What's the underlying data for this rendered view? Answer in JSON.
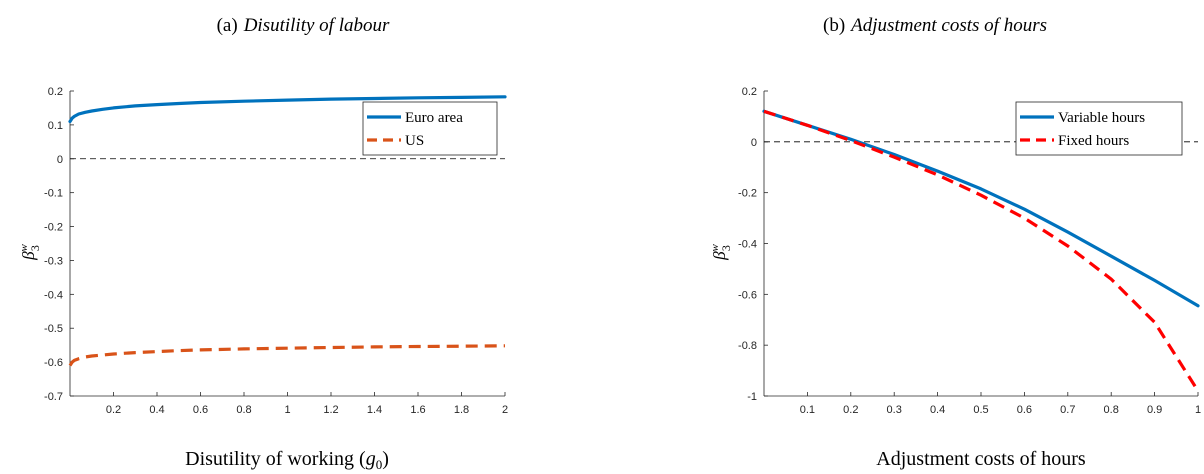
{
  "chart_data": [
    {
      "type": "line",
      "panel_label": "(a)",
      "title": "Disutility of labour",
      "xlabel": "Disutility of working (",
      "xlabel_symbol": "g",
      "xlabel_sub": "0",
      "xlabel_close": ")",
      "ylabel": "β",
      "ylabel_sup": "w",
      "ylabel_sub": "3",
      "xlim": [
        0,
        2
      ],
      "ylim": [
        -0.7,
        0.2
      ],
      "xticks": [
        "0.2",
        "0.4",
        "0.6",
        "0.8",
        "1",
        "1.2",
        "1.4",
        "1.6",
        "1.8",
        "2"
      ],
      "xtick_values": [
        0.2,
        0.4,
        0.6,
        0.8,
        1,
        1.2,
        1.4,
        1.6,
        1.8,
        2
      ],
      "yticks": [
        "0.2",
        "0.1",
        "0",
        "-0.1",
        "-0.2",
        "-0.3",
        "-0.4",
        "-0.5",
        "-0.6",
        "-0.7"
      ],
      "ytick_values": [
        0.2,
        0.1,
        0,
        -0.1,
        -0.2,
        -0.3,
        -0.4,
        -0.5,
        -0.6,
        -0.7
      ],
      "zero_line": true,
      "grid": false,
      "legend_position": "top-right",
      "series": [
        {
          "name": "Euro area",
          "color": "#0072BD",
          "style": "solid",
          "x": [
            0.0,
            0.01,
            0.02,
            0.04,
            0.07,
            0.1,
            0.15,
            0.2,
            0.3,
            0.4,
            0.5,
            0.6,
            0.8,
            1.0,
            1.2,
            1.4,
            1.6,
            1.8,
            2.0
          ],
          "y": [
            0.11,
            0.12,
            0.125,
            0.132,
            0.137,
            0.141,
            0.146,
            0.15,
            0.156,
            0.16,
            0.163,
            0.166,
            0.17,
            0.173,
            0.176,
            0.178,
            0.18,
            0.181,
            0.183
          ]
        },
        {
          "name": "US",
          "color": "#D95319",
          "style": "dashed",
          "x": [
            0.0,
            0.01,
            0.02,
            0.04,
            0.07,
            0.1,
            0.15,
            0.2,
            0.3,
            0.4,
            0.5,
            0.6,
            0.8,
            1.0,
            1.2,
            1.4,
            1.6,
            1.8,
            2.0
          ],
          "y": [
            -0.61,
            -0.6,
            -0.595,
            -0.59,
            -0.585,
            -0.582,
            -0.579,
            -0.576,
            -0.572,
            -0.569,
            -0.566,
            -0.564,
            -0.561,
            -0.559,
            -0.557,
            -0.555,
            -0.554,
            -0.553,
            -0.552
          ]
        }
      ]
    },
    {
      "type": "line",
      "panel_label": "(b)",
      "title": "Adjustment costs of hours",
      "xlabel": "Adjustment costs of hours",
      "ylabel": "β",
      "ylabel_sup": "w",
      "ylabel_sub": "3",
      "xlim": [
        0,
        1
      ],
      "ylim": [
        -1,
        0.2
      ],
      "xticks": [
        "0.1",
        "0.2",
        "0.3",
        "0.4",
        "0.5",
        "0.6",
        "0.7",
        "0.8",
        "0.9",
        "1"
      ],
      "xtick_values": [
        0.1,
        0.2,
        0.3,
        0.4,
        0.5,
        0.6,
        0.7,
        0.8,
        0.9,
        1
      ],
      "yticks": [
        "0.2",
        "0",
        "-0.2",
        "-0.4",
        "-0.6",
        "-0.8",
        "-1"
      ],
      "ytick_values": [
        0.2,
        0,
        -0.2,
        -0.4,
        -0.6,
        -0.8,
        -1
      ],
      "zero_line": true,
      "grid": false,
      "legend_position": "top-right",
      "series": [
        {
          "name": "Variable hours",
          "color": "#0072BD",
          "style": "solid",
          "x": [
            0.0,
            0.1,
            0.2,
            0.3,
            0.4,
            0.5,
            0.6,
            0.7,
            0.8,
            0.9,
            1.0
          ],
          "y": [
            0.12,
            0.065,
            0.01,
            -0.05,
            -0.115,
            -0.185,
            -0.265,
            -0.355,
            -0.45,
            -0.545,
            -0.645
          ]
        },
        {
          "name": "Fixed hours",
          "color": "#FF0000",
          "style": "dashed",
          "x": [
            0.0,
            0.1,
            0.2,
            0.3,
            0.4,
            0.5,
            0.6,
            0.7,
            0.8,
            0.9,
            1.0
          ],
          "y": [
            0.12,
            0.065,
            0.005,
            -0.06,
            -0.13,
            -0.21,
            -0.3,
            -0.41,
            -0.54,
            -0.71,
            -0.98
          ]
        }
      ]
    }
  ]
}
